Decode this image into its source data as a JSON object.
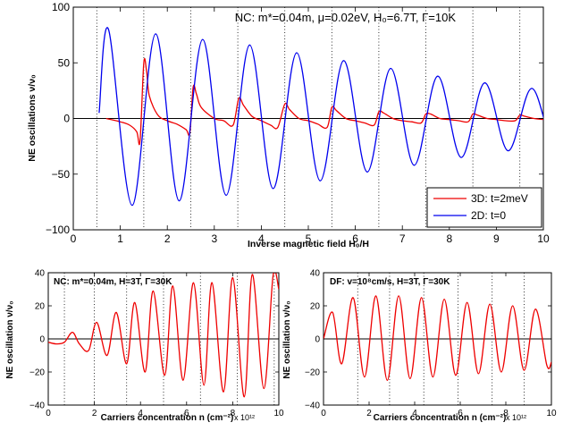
{
  "colors": {
    "red": "#ee0000",
    "blue": "#0000ee",
    "axis": "#000000",
    "zero": "#000000"
  },
  "chart_data": [
    {
      "type": "line",
      "title": "NC:  m*=0.04m, μ=0.02eV, H₀=6.7T, Γ=10K",
      "xlabel": "Inverse magnetic field  H₀/H",
      "ylabel": "NE oscillations  ν/ν₀",
      "xlim": [
        0,
        10
      ],
      "ylim": [
        -100,
        100
      ],
      "xticks": [
        "0",
        "1",
        "2",
        "3",
        "4",
        "5",
        "6",
        "7",
        "8",
        "9",
        "10"
      ],
      "yticks": [
        "−100",
        "−50",
        "0",
        "50",
        "100"
      ],
      "ytick_values": [
        -100,
        -50,
        0,
        50,
        100
      ],
      "xtick_values": [
        0,
        1,
        2,
        3,
        4,
        5,
        6,
        7,
        8,
        9,
        10
      ],
      "vlines": [
        0.5,
        1.5,
        2.5,
        3.5,
        4.5,
        5.5,
        6.5,
        7.5,
        8.5,
        9.5
      ],
      "legend_position": "bottom-right",
      "series": [
        {
          "name": "3D:  t=2meV",
          "color": "red",
          "x": [
            0.7,
            1.0,
            1.2,
            1.35,
            1.42,
            1.5,
            1.56,
            1.62,
            1.8,
            2.0,
            2.2,
            2.4,
            2.48,
            2.55,
            2.62,
            2.72,
            3.0,
            3.2,
            3.4,
            3.52,
            3.62,
            3.8,
            4.0,
            4.2,
            4.35,
            4.5,
            4.6,
            4.8,
            5.0,
            5.2,
            5.4,
            5.5,
            5.6,
            5.8,
            6.0,
            6.2,
            6.4,
            6.5,
            6.6,
            6.8,
            7.0,
            7.2,
            7.4,
            7.5,
            7.6,
            7.8,
            8.0,
            8.2,
            8.4,
            8.5,
            8.6,
            8.8,
            9.0,
            9.2,
            9.4,
            9.5,
            9.6,
            9.8,
            10.0
          ],
          "y": [
            0,
            -3,
            -6,
            -12,
            -20,
            50,
            42,
            20,
            3,
            -2,
            -5,
            -10,
            -13,
            28,
            22,
            10,
            0,
            -2,
            -6,
            18,
            12,
            2,
            -2,
            -6,
            -8,
            13,
            8,
            0,
            -2,
            -5,
            -8,
            10,
            7,
            0,
            -2,
            -4,
            -6,
            6,
            5,
            0,
            -2,
            -3,
            -4,
            4,
            4,
            0,
            -1,
            -2,
            -3,
            4,
            3,
            0,
            -1,
            -2,
            -2,
            3,
            2,
            0,
            -1
          ]
        },
        {
          "name": "2D: t=0",
          "color": "blue",
          "amplitudes": [
            80,
            -78,
            76,
            -74,
            71,
            -69,
            66,
            -63,
            59,
            -56,
            52,
            -48,
            45,
            -42,
            38,
            -35,
            32,
            -29,
            27,
            -25,
            23
          ],
          "x_start": 0.75,
          "x_step": 0.5,
          "x_end": 10.0,
          "y_end": -2
        }
      ]
    },
    {
      "type": "line",
      "title": "NC: m*=0.04m, H=3T, Γ=30K",
      "xlabel": "Carriers concentration n (cm⁻²)",
      "ylabel": "NE oscillation  ν/ν₀",
      "x_multiplier": "x 10¹²",
      "xlim": [
        0,
        10
      ],
      "ylim": [
        -40,
        40
      ],
      "xticks": [
        "0",
        "2",
        "4",
        "6",
        "8",
        "10"
      ],
      "xtick_values": [
        0,
        2,
        4,
        6,
        8,
        10
      ],
      "yticks": [
        "−40",
        "−20",
        "0",
        "20",
        "40"
      ],
      "ytick_values": [
        -40,
        -20,
        0,
        20,
        40
      ],
      "vlines": [
        0.7,
        2.0,
        3.4,
        5.0,
        6.6,
        8.2,
        9.8
      ],
      "series": [
        {
          "color": "red",
          "x": [
            0,
            0.35,
            0.7,
            1.05,
            1.35,
            1.75,
            2.1,
            2.55,
            2.95,
            3.4,
            3.75,
            4.2,
            4.55,
            5.05,
            5.4,
            5.85,
            6.3,
            6.75,
            7.1,
            7.6,
            8.0,
            8.5,
            8.85,
            9.35,
            9.75,
            10.0
          ],
          "y": [
            -2,
            -3,
            -2,
            4,
            -3,
            -7,
            10,
            -10,
            16,
            -15,
            22,
            -20,
            29,
            -22,
            32,
            -25,
            34,
            -28,
            34,
            -32,
            37,
            -35,
            39,
            -30,
            38,
            30
          ]
        }
      ]
    },
    {
      "type": "line",
      "title": "DF: v=10⁸cm/s, H=3T, Γ=30K",
      "xlabel": "Carriers concentration n (cm⁻²)",
      "ylabel": "NE oscillation  ν/ν₀",
      "x_multiplier": "x 10¹²",
      "xlim": [
        0,
        10
      ],
      "ylim": [
        -40,
        40
      ],
      "xticks": [
        "0",
        "2",
        "4",
        "6",
        "8",
        "10"
      ],
      "xtick_values": [
        0,
        2,
        4,
        6,
        8,
        10
      ],
      "yticks": [
        "−40",
        "−20",
        "0",
        "20",
        "40"
      ],
      "ytick_values": [
        -40,
        -20,
        0,
        20,
        40
      ],
      "vlines": [
        1.5,
        2.9,
        4.4,
        5.9,
        7.4,
        8.8
      ],
      "series": [
        {
          "color": "red",
          "x": [
            0,
            0.4,
            0.8,
            1.3,
            1.8,
            2.3,
            2.8,
            3.3,
            3.8,
            4.3,
            4.8,
            5.3,
            5.8,
            6.3,
            6.8,
            7.3,
            7.8,
            8.3,
            8.8,
            9.3,
            9.8,
            10.0
          ],
          "y": [
            0,
            16,
            -15,
            25,
            -23,
            26,
            -25,
            26,
            -24,
            25,
            -23,
            24,
            -22,
            22,
            -21,
            21,
            -20,
            20,
            -19,
            18,
            -16,
            -14
          ]
        }
      ]
    }
  ]
}
